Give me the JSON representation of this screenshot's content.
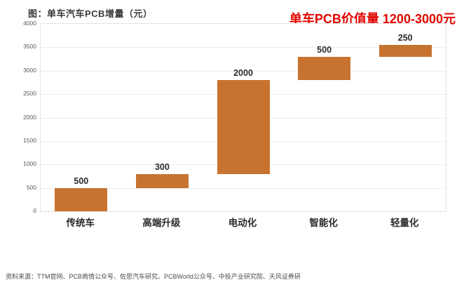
{
  "page": {
    "title": "图：单车汽车PCB增量（元）",
    "annotation": "单车PCB价值量 1200-3000元",
    "source": "资料来源：TTM官网、PCB商情公众号、佐思汽车研究、PCBWorld公众号、中投产业研究院、天风证券研"
  },
  "colors": {
    "bar": "#c7732f",
    "annotation_red": "#e10600",
    "grid": "#ececec",
    "plot_border": "#e2e2e2",
    "tick_label": "#595959",
    "text_dark": "#2b2b2b"
  },
  "chart_data": {
    "type": "bar",
    "subtype": "waterfall",
    "title": "图：单车汽车PCB增量（元）",
    "annotation": "单车PCB价值量 1200-3000元",
    "categories": [
      "传统车",
      "高端升级",
      "电动化",
      "智能化",
      "轻量化"
    ],
    "values": [
      500,
      300,
      2000,
      500,
      250
    ],
    "cumulative_base": [
      0,
      500,
      800,
      2800,
      3300
    ],
    "cumulative_top": [
      500,
      800,
      2800,
      3300,
      3550
    ],
    "data_labels": [
      "500",
      "300",
      "2000",
      "500",
      "250"
    ],
    "xlabel": "",
    "ylabel": "",
    "ylim": [
      0,
      4000
    ],
    "ytick_interval": 500,
    "yticks": [
      0,
      500,
      1000,
      1500,
      2000,
      2500,
      3000,
      3500,
      4000
    ],
    "grid": true,
    "legend": false,
    "bar_color": "#c7732f"
  }
}
